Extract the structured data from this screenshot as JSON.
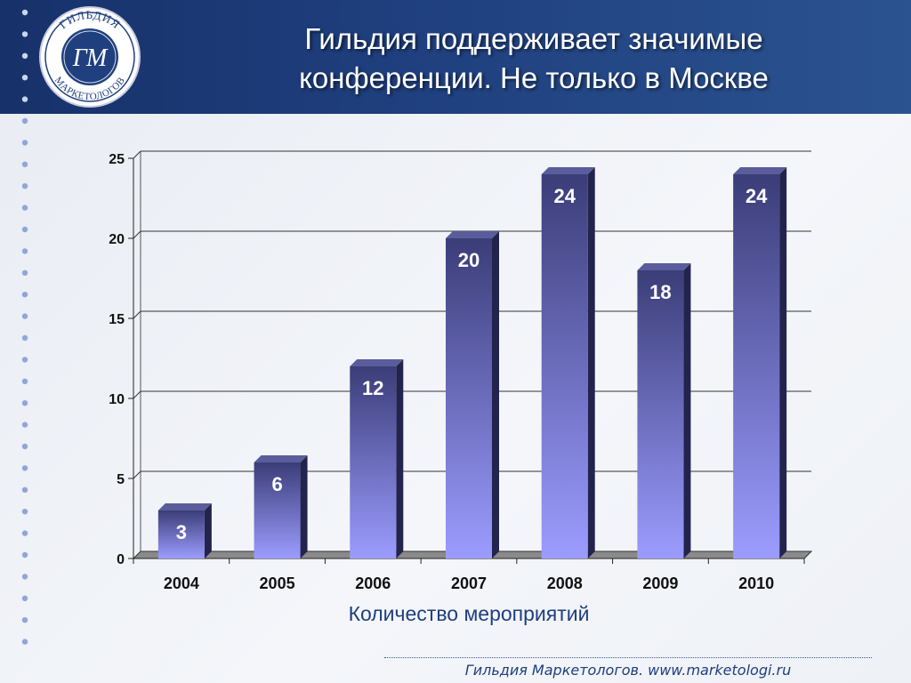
{
  "header": {
    "title_line1": "Гильдия поддерживает значимые",
    "title_line2": "конференции. Не только в Москве"
  },
  "logo": {
    "arc_top": "ГИЛЬДИЯ",
    "arc_bottom": "МАРКЕТОЛОГОВ",
    "monogram": "ГМ"
  },
  "chart_data": {
    "type": "bar",
    "categories": [
      "2004",
      "2005",
      "2006",
      "2007",
      "2008",
      "2009",
      "2010"
    ],
    "values": [
      3,
      6,
      12,
      20,
      24,
      18,
      24
    ],
    "xlabel": "Количество мероприятий",
    "ylabel": "",
    "ylim": [
      0,
      25
    ],
    "yticks": [
      0,
      5,
      10,
      15,
      20,
      25
    ],
    "grid": true,
    "colors": {
      "bar_top": "#3b3d78",
      "bar_bottom": "#9c9cff",
      "bar_side": "#23244d",
      "bar_cap": "#5a5c9c",
      "label": "#ffffff",
      "axis_title": "#1f3f7e"
    }
  },
  "footer": {
    "text": "Гильдия Маркетологов. www.marketologi.ru"
  }
}
